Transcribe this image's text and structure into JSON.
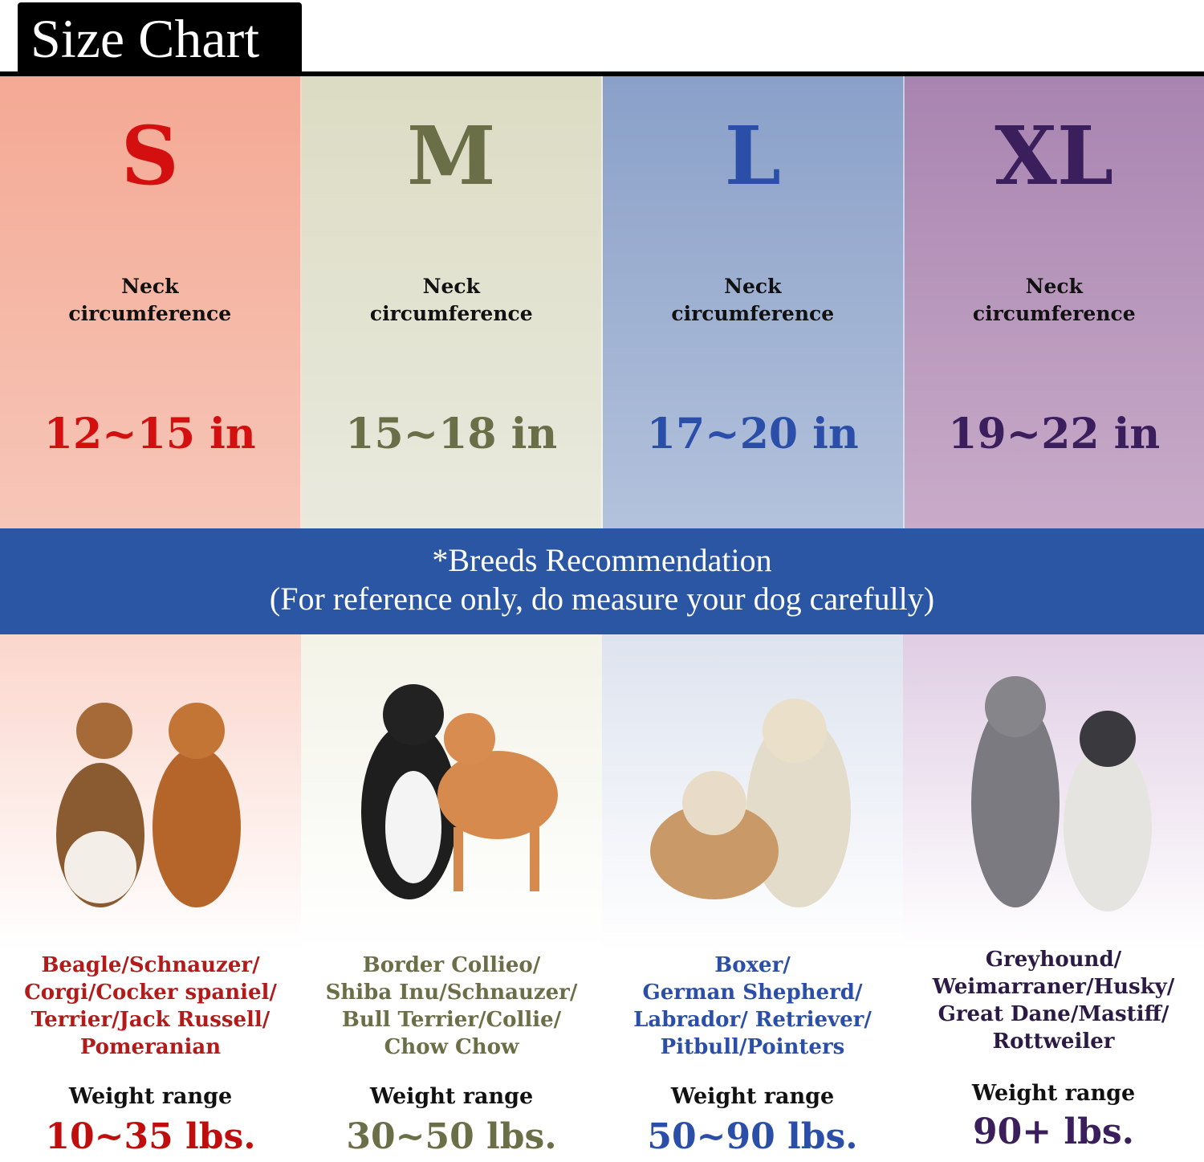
{
  "title": "Size Chart",
  "banner": {
    "line1": "*Breeds Recommendation",
    "line2": "(For reference only, do measure your dog carefully)"
  },
  "colors": {
    "banner": "#2b56a4",
    "S": "#d40f0f",
    "M": "#6b6f48",
    "L": "#2b4fa8",
    "XL": "#3a1f5c"
  },
  "sizes": [
    {
      "size": "S",
      "neck_label_1": "Neck",
      "neck_label_2": "circumference",
      "neck": "12~15 in",
      "breeds": "Beagle/Schnauzer/\nCorgi/Cocker spaniel/\nTerrier/Jack Russell/\nPomeranian",
      "weight_label": "Weight range",
      "weight": "10~35 lbs.",
      "image": "beagle-and-cocker-spaniel-photo"
    },
    {
      "size": "M",
      "neck_label_1": "Neck",
      "neck_label_2": "circumference",
      "neck": "15~18 in",
      "breeds": "Border Collieo/\nShiba Inu/Schnauzer/\nBull Terrier/Collie/\nChow Chow",
      "weight_label": "Weight range",
      "weight": "30~50 lbs.",
      "image": "border-collie-and-shiba-inu-photo"
    },
    {
      "size": "L",
      "neck_label_1": "Neck",
      "neck_label_2": "circumference",
      "neck": "17~20 in",
      "breeds": "Boxer/\nGerman Shepherd/\nLabrador/ Retriever/\nPitbull/Pointers",
      "weight_label": "Weight range",
      "weight": "50~90 lbs.",
      "image": "bulldog-and-golden-retriever-photo"
    },
    {
      "size": "XL",
      "neck_label_1": "Neck",
      "neck_label_2": "circumference",
      "neck": "19~22 in",
      "breeds": "Greyhound/\nWeimarraner/Husky/\nGreat Dane/Mastiff/\nRottweiler",
      "weight_label": "Weight range",
      "weight": "90+ lbs.",
      "image": "weimaraner-and-husky-photo"
    }
  ]
}
